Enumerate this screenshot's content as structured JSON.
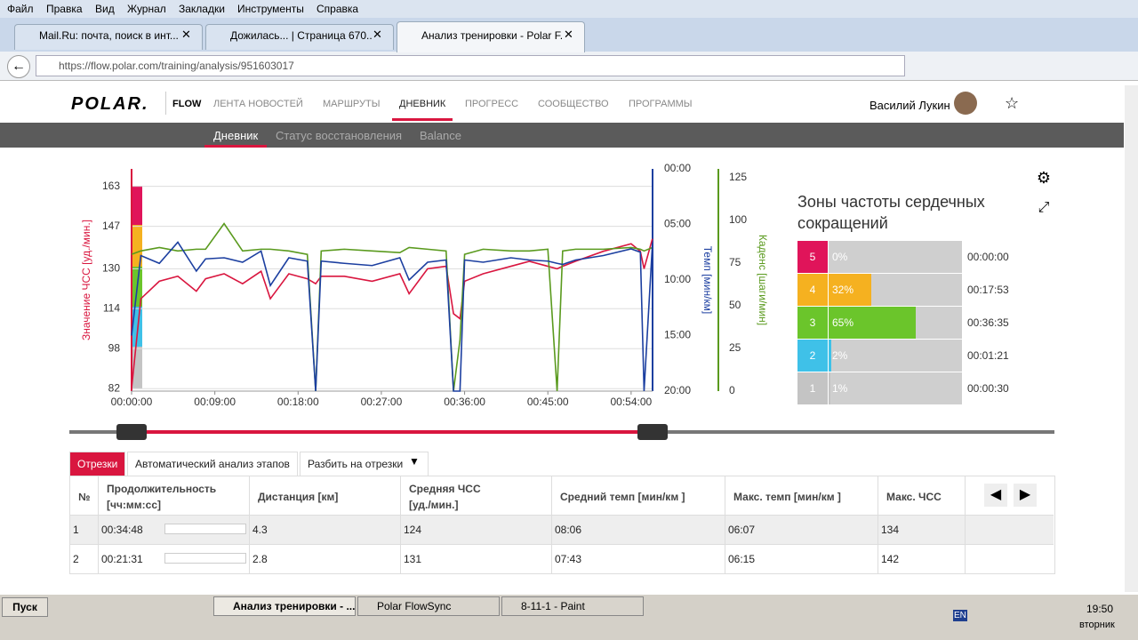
{
  "browser": {
    "menu": [
      "Файл",
      "Правка",
      "Вид",
      "Журнал",
      "Закладки",
      "Инструменты",
      "Справка"
    ],
    "tabs": [
      "Mail.Ru: почта, поиск в инт...",
      "Дожилась... | Страница 670...",
      "Анализ тренировки - Polar F..."
    ],
    "url": "https://flow.polar.com/training/analysis/951603017"
  },
  "header": {
    "logo": "POLAR.",
    "product": "FLOW",
    "nav": [
      "ЛЕНТА НОВОСТЕЙ",
      "МАРШРУТЫ",
      "ДНЕВНИК",
      "ПРОГРЕСС",
      "СООБЩЕСТВО",
      "ПРОГРАММЫ"
    ],
    "user": "Василий Лукин"
  },
  "subnav": [
    "Дневник",
    "Статус восстановления",
    "Balance"
  ],
  "chart_data": {
    "type": "line",
    "x": [
      0,
      1,
      3,
      5,
      7,
      8,
      10,
      12,
      14,
      15,
      17,
      19,
      19.9,
      20.5,
      23,
      26,
      29,
      30,
      32,
      34,
      34.8,
      35.5,
      36,
      38,
      41,
      43,
      45,
      46,
      46.6,
      48,
      51,
      54,
      55,
      55.4,
      56.3
    ],
    "xlim": [
      0,
      56.32
    ],
    "xticks": [
      {
        "value": 0,
        "label": "00:00:00"
      },
      {
        "value": 9,
        "label": "00:09:00"
      },
      {
        "value": 18,
        "label": "00:18:00"
      },
      {
        "value": 27,
        "label": "00:27:00"
      },
      {
        "value": 36,
        "label": "00:36:00"
      },
      {
        "value": 45,
        "label": "00:45:00"
      },
      {
        "value": 54,
        "label": "00:54:00"
      }
    ],
    "ylim": [
      81,
      170
    ],
    "yticks": [
      82,
      98,
      114,
      130,
      147,
      163
    ],
    "ylabel": "Значение ЧСС [уд./мин.]",
    "y2lim": [
      0,
      20
    ],
    "y2_inverted": true,
    "y2ticks": [
      {
        "value": 0,
        "label": "00:00"
      },
      {
        "value": 5,
        "label": "05:00"
      },
      {
        "value": 10,
        "label": "10:00"
      },
      {
        "value": 15,
        "label": "15:00"
      },
      {
        "value": 20,
        "label": "20:00"
      }
    ],
    "y2label": "Темп [мин/км]",
    "y3lim": [
      0,
      130
    ],
    "y3ticks": [
      0,
      25,
      50,
      75,
      100,
      125
    ],
    "y3label": "Каденс [шаги/мин]",
    "grid": true,
    "series": [
      {
        "name": "ЧСС",
        "color": "#d9163f",
        "axis": "y",
        "values": [
          82,
          118,
          125,
          127,
          121,
          126,
          128,
          124,
          129,
          118,
          128,
          126,
          124,
          127,
          127,
          125,
          128,
          120,
          130,
          131,
          112,
          110,
          125,
          128,
          131,
          133,
          131,
          130,
          131,
          133,
          137,
          140,
          137,
          130,
          142
        ]
      },
      {
        "name": "Каденс",
        "color": "#5a9a1e",
        "axis": "y3",
        "values": [
          80,
          82,
          84,
          82,
          83,
          83,
          98,
          82,
          83,
          83,
          82,
          80,
          0,
          82,
          83,
          82,
          81,
          84,
          83,
          82,
          0,
          30,
          80,
          83,
          82,
          82,
          83,
          0,
          82,
          83,
          83,
          84,
          83,
          82,
          84
        ]
      },
      {
        "name": "Темп",
        "color": "#1c3fa0",
        "axis": "y2",
        "values": [
          15,
          7.8,
          8.5,
          6.6,
          9.2,
          8.1,
          8,
          8.4,
          7.4,
          10.5,
          8,
          8.3,
          20,
          8.3,
          8.5,
          8.7,
          8,
          10,
          8.4,
          8.2,
          20,
          20,
          8.2,
          8.4,
          8,
          8.2,
          8.3,
          8.5,
          8.6,
          8.2,
          7.8,
          7.2,
          7.5,
          20,
          6.8
        ]
      }
    ]
  },
  "zones": {
    "title": "Зоны частоты сердечных\nсокращений",
    "rows": [
      {
        "zone": "5",
        "percent": 0,
        "percent_label": "0%",
        "time": "00:00:00",
        "color": "#e0145a"
      },
      {
        "zone": "4",
        "percent": 32,
        "percent_label": "32%",
        "time": "00:17:53",
        "color": "#f5b120"
      },
      {
        "zone": "3",
        "percent": 65,
        "percent_label": "65%",
        "time": "00:36:35",
        "color": "#6bc52b"
      },
      {
        "zone": "2",
        "percent": 2,
        "percent_label": "2%",
        "time": "00:01:21",
        "color": "#3fc1e8"
      },
      {
        "zone": "1",
        "percent": 1,
        "percent_label": "1%",
        "time": "00:00:30",
        "color": "#c4c4c4"
      }
    ]
  },
  "laps": {
    "tabs": [
      "Отрезки",
      "Автоматический анализ этапов",
      "Разбить на отрезки"
    ],
    "headers": [
      "№",
      "Продолжительность\n[чч:мм:сс]",
      "Дистанция [км]",
      "Средняя ЧСС\n[уд./мин.]",
      "Средний темп [мин/км ]",
      "Макс. темп [мин/км ]",
      "Макс. ЧСС"
    ],
    "rows": [
      [
        "1",
        "00:34:48",
        "4.3",
        "124",
        "08:06",
        "06:07",
        "134"
      ],
      [
        "2",
        "00:21:31",
        "2.8",
        "131",
        "07:43",
        "06:15",
        "142"
      ]
    ]
  },
  "taskbar": {
    "start": "Пуск",
    "tasks": [
      "Анализ тренировки - ...",
      "Polar FlowSync",
      "8-11-1 - Paint"
    ],
    "lang": "EN",
    "time": "19:50",
    "day": "вторник"
  }
}
